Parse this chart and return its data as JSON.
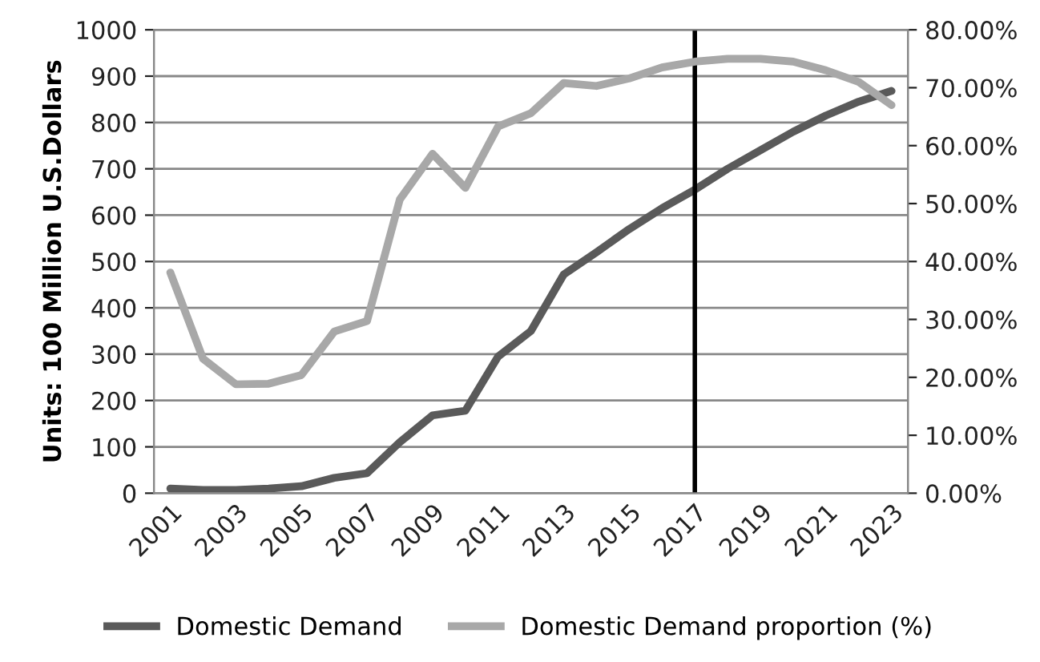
{
  "chart_data": {
    "type": "line",
    "ylabel": "Units: 100 Million U.S.Dollars",
    "x": [
      2001,
      2002,
      2003,
      2004,
      2005,
      2006,
      2007,
      2008,
      2009,
      2010,
      2011,
      2012,
      2013,
      2014,
      2015,
      2016,
      2017,
      2018,
      2019,
      2020,
      2021,
      2022,
      2023
    ],
    "series": [
      {
        "name": "Domestic Demand",
        "color": "#5a5a5a",
        "values": [
          10,
          7,
          7,
          10,
          15,
          33,
          43,
          110,
          168,
          178,
          295,
          350,
          472,
          520,
          570,
          615,
          655,
          700,
          740,
          780,
          815,
          845,
          868
        ]
      },
      {
        "name": "Domestic Demand proportion (%)",
        "color": "#a8a8a8",
        "axis": "y2",
        "values": [
          38.1,
          23.2,
          18.8,
          18.9,
          20.4,
          27.9,
          29.7,
          50.7,
          58.6,
          52.7,
          63.3,
          65.6,
          70.8,
          70.3,
          71.6,
          73.5,
          74.5,
          75,
          75,
          74.5,
          73,
          71,
          67
        ]
      }
    ],
    "xlim": [
      2000.5,
      2023.5
    ],
    "xticks": [
      2001,
      2003,
      2005,
      2007,
      2009,
      2011,
      2013,
      2015,
      2017,
      2019,
      2021,
      2023
    ],
    "ylim": [
      0,
      1000
    ],
    "yticks": [
      0,
      100,
      200,
      300,
      400,
      500,
      600,
      700,
      800,
      900,
      1000
    ],
    "y2lim": [
      0,
      80
    ],
    "y2ticks": [
      {
        "value": 0,
        "label": "0.00%"
      },
      {
        "value": 10,
        "label": "10.00%"
      },
      {
        "value": 20,
        "label": "20.00%"
      },
      {
        "value": 30,
        "label": "30.00%"
      },
      {
        "value": 40,
        "label": "40.00%"
      },
      {
        "value": 50,
        "label": "50.00%"
      },
      {
        "value": 60,
        "label": "60.00%"
      },
      {
        "value": 70,
        "label": "70.00%"
      },
      {
        "value": 80,
        "label": "80.00%"
      }
    ],
    "ref_lines": [
      {
        "axis": "x",
        "value": 2017,
        "color": "#000000"
      }
    ],
    "grid": "y",
    "legend": "bottom",
    "marker": "none",
    "line_style": "solid"
  }
}
